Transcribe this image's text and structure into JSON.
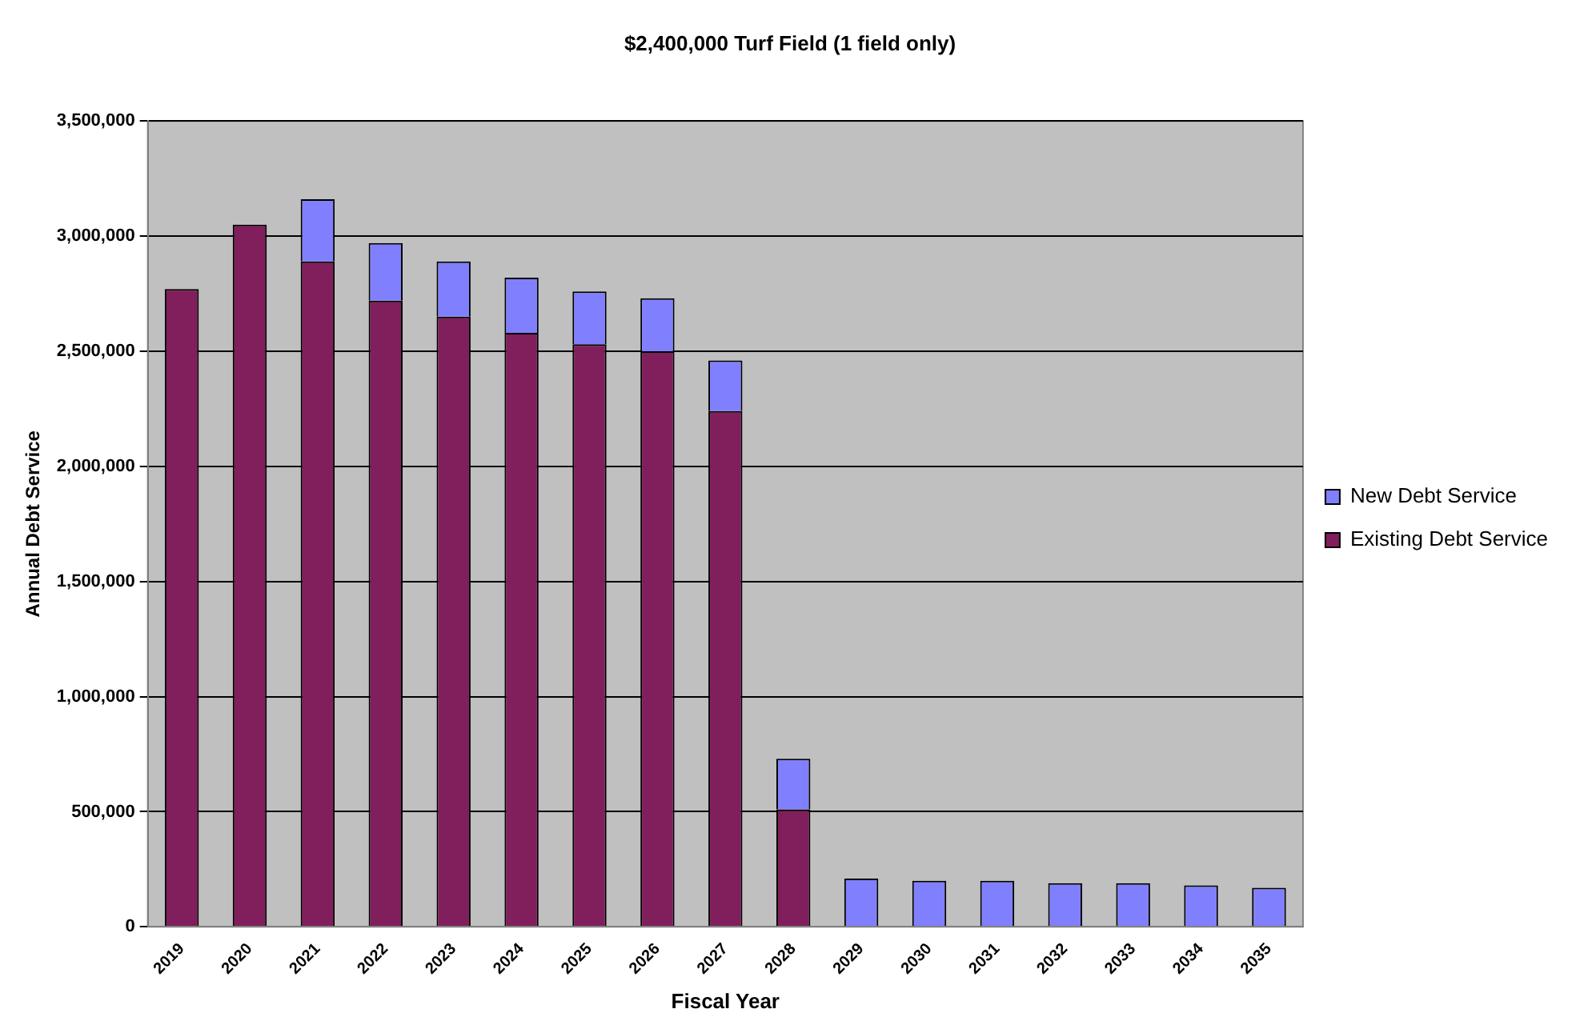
{
  "chart_data": {
    "type": "bar",
    "title": "$2,400,000 Turf Field (1 field only)",
    "xlabel": "Fiscal Year",
    "ylabel": "Annual Debt Service",
    "categories": [
      "2019",
      "2020",
      "2021",
      "2022",
      "2023",
      "2024",
      "2025",
      "2026",
      "2027",
      "2028",
      "2029",
      "2030",
      "2031",
      "2032",
      "2033",
      "2034",
      "2035"
    ],
    "stacked": true,
    "series": [
      {
        "name": "Existing Debt Service",
        "color": "#801f5c",
        "values": [
          2770000,
          3050000,
          2890000,
          2720000,
          2650000,
          2580000,
          2530000,
          2500000,
          2240000,
          510000,
          0,
          0,
          0,
          0,
          0,
          0,
          0
        ]
      },
      {
        "name": "New Debt Service",
        "color": "#8080ff",
        "values": [
          0,
          0,
          270000,
          250000,
          240000,
          240000,
          230000,
          230000,
          220000,
          220000,
          210000,
          200000,
          200000,
          190000,
          190000,
          180000,
          170000
        ]
      }
    ],
    "ylim": [
      0,
      3500000
    ],
    "yticks": [
      0,
      {
        "value": 500000,
        "label": "500,000"
      },
      {
        "value": 1000000,
        "label": "1,000,000"
      },
      {
        "value": 1500000,
        "label": "1,500,000"
      },
      {
        "value": 2000000,
        "label": "2,000,000"
      },
      {
        "value": 2500000,
        "label": "2,500,000"
      },
      {
        "value": 3000000,
        "label": "3,000,000"
      },
      {
        "value": 3500000,
        "label": "3,500,000"
      }
    ],
    "grid": "y",
    "legend": "right"
  }
}
